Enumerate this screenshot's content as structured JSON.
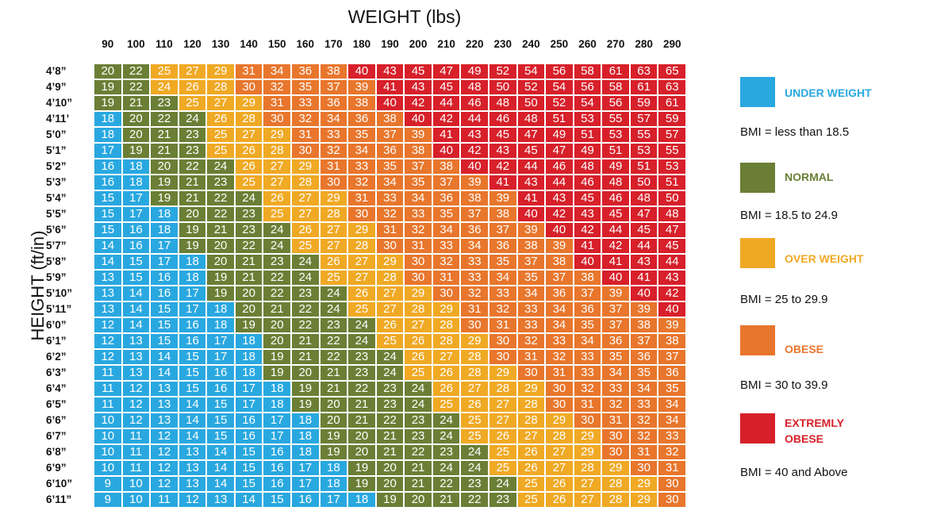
{
  "chart_data": {
    "type": "heatmap",
    "title": "WEIGHT (lbs)",
    "xlabel": "WEIGHT (lbs)",
    "ylabel": "HEIGHT (ft/in)",
    "weights": [
      90,
      100,
      110,
      120,
      130,
      140,
      150,
      160,
      170,
      180,
      190,
      200,
      210,
      220,
      230,
      240,
      250,
      260,
      270,
      280,
      290
    ],
    "heights": [
      "4’8”",
      "4’9”",
      "4’10”",
      "4’11’",
      "5’0”",
      "5’1”",
      "5’2”",
      "5’3”",
      "5’4”",
      "5’5”",
      "5’6”",
      "5’7”",
      "5’8”",
      "5’9”",
      "5’10”",
      "5’11”",
      "6’0”",
      "6’1”",
      "6’2”",
      "6’3”",
      "6’4”",
      "6’5”",
      "6’6”",
      "6’7”",
      "6’8”",
      "6’9”",
      "6’10”",
      "6’11”"
    ],
    "values": [
      [
        20,
        22,
        25,
        27,
        29,
        31,
        34,
        36,
        38,
        40,
        43,
        45,
        47,
        49,
        52,
        54,
        56,
        58,
        61,
        63,
        65
      ],
      [
        19,
        22,
        24,
        26,
        28,
        30,
        32,
        35,
        37,
        39,
        41,
        43,
        45,
        48,
        50,
        52,
        54,
        56,
        58,
        61,
        63
      ],
      [
        19,
        21,
        23,
        25,
        27,
        29,
        31,
        33,
        36,
        38,
        40,
        42,
        44,
        46,
        48,
        50,
        52,
        54,
        56,
        59,
        61
      ],
      [
        18,
        20,
        22,
        24,
        26,
        28,
        30,
        32,
        34,
        36,
        38,
        40,
        42,
        44,
        46,
        48,
        51,
        53,
        55,
        57,
        59
      ],
      [
        18,
        20,
        21,
        23,
        25,
        27,
        29,
        31,
        33,
        35,
        37,
        39,
        41,
        43,
        45,
        47,
        49,
        51,
        53,
        55,
        57
      ],
      [
        17,
        19,
        21,
        23,
        25,
        26,
        28,
        30,
        32,
        34,
        36,
        38,
        40,
        42,
        43,
        45,
        47,
        49,
        51,
        53,
        55
      ],
      [
        16,
        18,
        20,
        22,
        24,
        26,
        27,
        29,
        31,
        33,
        35,
        37,
        38,
        40,
        42,
        44,
        46,
        48,
        49,
        51,
        53
      ],
      [
        16,
        18,
        19,
        21,
        23,
        25,
        27,
        28,
        30,
        32,
        34,
        35,
        37,
        39,
        41,
        43,
        44,
        46,
        48,
        50,
        51
      ],
      [
        15,
        17,
        19,
        21,
        22,
        24,
        26,
        27,
        29,
        31,
        33,
        34,
        36,
        38,
        39,
        41,
        43,
        45,
        46,
        48,
        50
      ],
      [
        15,
        17,
        18,
        20,
        22,
        23,
        25,
        27,
        28,
        30,
        32,
        33,
        35,
        37,
        38,
        40,
        42,
        43,
        45,
        47,
        48
      ],
      [
        15,
        16,
        18,
        19,
        21,
        23,
        24,
        26,
        27,
        29,
        31,
        32,
        34,
        36,
        37,
        39,
        40,
        42,
        44,
        45,
        47
      ],
      [
        14,
        16,
        17,
        19,
        20,
        22,
        24,
        25,
        27,
        28,
        30,
        31,
        33,
        34,
        36,
        38,
        39,
        41,
        42,
        44,
        45
      ],
      [
        14,
        15,
        17,
        18,
        20,
        21,
        23,
        24,
        26,
        27,
        29,
        30,
        32,
        33,
        35,
        37,
        38,
        40,
        41,
        43,
        44
      ],
      [
        13,
        15,
        16,
        18,
        19,
        21,
        22,
        24,
        25,
        27,
        28,
        30,
        31,
        33,
        34,
        35,
        37,
        38,
        40,
        41,
        43
      ],
      [
        13,
        14,
        16,
        17,
        19,
        20,
        22,
        23,
        24,
        26,
        27,
        29,
        30,
        32,
        33,
        34,
        36,
        37,
        39,
        40,
        42
      ],
      [
        13,
        14,
        15,
        17,
        18,
        20,
        21,
        22,
        24,
        25,
        27,
        28,
        29,
        31,
        32,
        33,
        34,
        36,
        37,
        39,
        40
      ],
      [
        12,
        14,
        15,
        16,
        18,
        19,
        20,
        22,
        23,
        24,
        26,
        27,
        28,
        30,
        31,
        33,
        34,
        35,
        37,
        38,
        39
      ],
      [
        12,
        13,
        15,
        16,
        17,
        18,
        20,
        21,
        22,
        24,
        25,
        26,
        28,
        29,
        30,
        32,
        33,
        34,
        36,
        37,
        38
      ],
      [
        12,
        13,
        14,
        15,
        17,
        18,
        19,
        21,
        22,
        23,
        24,
        26,
        27,
        28,
        30,
        31,
        32,
        33,
        35,
        36,
        37
      ],
      [
        11,
        13,
        14,
        15,
        16,
        18,
        19,
        20,
        21,
        23,
        24,
        25,
        26,
        28,
        29,
        30,
        31,
        33,
        34,
        35,
        36
      ],
      [
        11,
        12,
        13,
        15,
        16,
        17,
        18,
        19,
        21,
        22,
        23,
        24,
        26,
        27,
        28,
        29,
        30,
        32,
        33,
        34,
        35
      ],
      [
        11,
        12,
        13,
        14,
        15,
        17,
        18,
        19,
        20,
        21,
        23,
        24,
        25,
        26,
        27,
        28,
        30,
        31,
        32,
        33,
        34
      ],
      [
        10,
        12,
        13,
        14,
        15,
        16,
        17,
        18,
        20,
        21,
        22,
        23,
        24,
        25,
        27,
        28,
        29,
        30,
        31,
        32,
        34
      ],
      [
        10,
        11,
        12,
        14,
        15,
        16,
        17,
        18,
        19,
        20,
        21,
        23,
        24,
        25,
        26,
        27,
        28,
        29,
        30,
        32,
        33
      ],
      [
        10,
        11,
        12,
        13,
        14,
        15,
        16,
        18,
        19,
        20,
        21,
        22,
        23,
        24,
        25,
        26,
        27,
        29,
        30,
        31,
        32
      ],
      [
        10,
        11,
        12,
        13,
        14,
        15,
        16,
        17,
        18,
        19,
        20,
        21,
        24,
        24,
        25,
        26,
        27,
        28,
        29,
        30,
        31
      ],
      [
        9,
        10,
        12,
        13,
        14,
        15,
        16,
        17,
        18,
        19,
        20,
        21,
        22,
        23,
        24,
        25,
        26,
        27,
        28,
        29,
        30
      ],
      [
        9,
        10,
        11,
        12,
        13,
        14,
        15,
        16,
        17,
        18,
        19,
        20,
        21,
        22,
        23,
        25,
        26,
        27,
        28,
        29,
        30
      ]
    ],
    "category_exceptions": [
      {
        "height": "4’9”",
        "weight": 110,
        "category": "over"
      }
    ],
    "categories": [
      {
        "key": "under",
        "name": "UNDER WEIGHT",
        "range": "BMI = less than 18.5",
        "color": "#29a8e0",
        "max": 18
      },
      {
        "key": "normal",
        "name": "NORMAL",
        "range": "BMI = 18.5 to 24.9",
        "color": "#6a7f35",
        "max": 24
      },
      {
        "key": "over",
        "name": "OVER WEIGHT",
        "range": "BMI = 25 to 29.9",
        "color": "#f0a924",
        "max": 29
      },
      {
        "key": "obese",
        "name": "OBESE",
        "range": "BMI = 30 to 39.9",
        "color": "#e8762c",
        "max": 39
      },
      {
        "key": "extreme",
        "name": "EXTREMLY OBESE",
        "name_lines": [
          "EXTREMLY",
          "OBESE"
        ],
        "range": "BMI = 40 and Above",
        "color": "#d7202a",
        "max": 999
      }
    ],
    "legend_position": "right"
  }
}
